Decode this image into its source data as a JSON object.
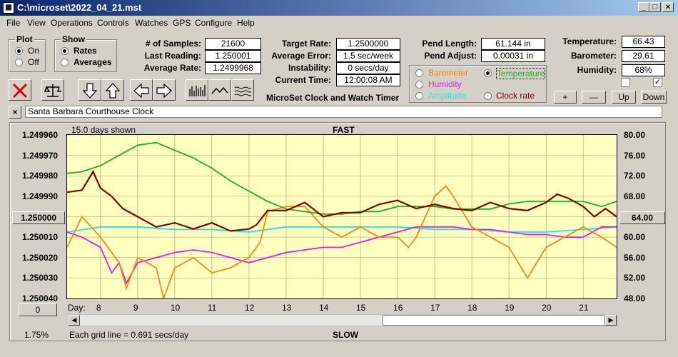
{
  "window": {
    "title": "C:\\microset\\2022_04_21.mst"
  },
  "menu": [
    "File",
    "View",
    "Operations",
    "Controls",
    "Watches",
    "GPS",
    "Configure",
    "Help"
  ],
  "plot_group": {
    "title": "Plot",
    "on": "On",
    "off": "Off",
    "selected": "On"
  },
  "show_group": {
    "title": "Show",
    "rates": "Rates",
    "averages": "Averages",
    "selected": "Rates"
  },
  "stats": {
    "samples_label": "# of Samples:",
    "samples": "21600",
    "last_label": "Last Reading:",
    "last": "1.250001",
    "avg_label": "Average Rate:",
    "avg": "1.2499968",
    "target_label": "Target Rate:",
    "target": "1.2500000",
    "avgerr_label": "Average Error:",
    "avgerr": "1.5 sec/week",
    "instab_label": "Instability:",
    "instab": "0 secs/day",
    "time_label": "Current Time:",
    "time": "12:00:08 AM",
    "pendlen_label": "Pend Length:",
    "pendlen": "61.144 in",
    "pendadj_label": "Pend Adjust:",
    "pendadj": "0.00031 in",
    "temp_label": "Temperature:",
    "temp": "66.43",
    "baro_label": "Barometer:",
    "baro": "29.61",
    "hum_label": "Humidity:",
    "hum": "68%"
  },
  "app_caption": "MicroSet Clock and Watch Timer",
  "sensor_select": {
    "barometer": "Barometer",
    "temperature": "Temperature",
    "humidity": "Humidity",
    "amplitude": "Amplitude",
    "clockrate": "Clock rate",
    "selected": "Temperature"
  },
  "scale_buttons": {
    "plus": "+",
    "minus": "—",
    "up": "Up",
    "down": "Down"
  },
  "clock_name": "Santa Barbara Courthouse Clock",
  "chart_header": {
    "days_shown": "15.0 days shown",
    "fast": "FAST",
    "slow": "SLOW",
    "grid_note": "Each grid line = 0.691 secs/day",
    "percent": "1.75%",
    "day_label": "Day:",
    "left_center_btn": "1.250000",
    "right_center_btn": "64.00",
    "bottom_btn": "0"
  },
  "colors": {
    "rate": "#800000",
    "temperature": "#20b020",
    "barometer": "#f08c14",
    "humidity": "#e020e0",
    "amplitude": "#20e0f0",
    "plot_bg": "#ffffc0"
  },
  "chart_data": {
    "type": "line",
    "x_label": "Day:",
    "x_ticks": [
      8,
      9,
      10,
      11,
      12,
      13,
      14,
      15,
      16,
      17,
      18,
      19,
      20,
      21
    ],
    "xlim": [
      7.1,
      21.9
    ],
    "y_left_ticks": [
      "1.249960",
      "1.249970",
      "1.249980",
      "1.249990",
      "1.250000",
      "1.250010",
      "1.250020",
      "1.250030",
      "1.250040"
    ],
    "y_left_lim": [
      1.24996,
      1.25004
    ],
    "y_right_ticks": [
      "80.00",
      "76.00",
      "72.00",
      "68.00",
      "64.00",
      "60.00",
      "56.00",
      "52.00",
      "48.00"
    ],
    "y_right_lim": [
      48,
      80
    ],
    "series": [
      {
        "name": "",
        "axis": "left",
        "color": "#800000",
        "x": [
          7.1,
          7.5,
          7.8,
          8.0,
          8.3,
          8.6,
          9.0,
          9.5,
          10,
          10.5,
          11,
          11.5,
          12,
          12.2,
          12.5,
          13,
          13.5,
          14,
          14.5,
          15,
          15.5,
          16,
          16.5,
          17,
          17.5,
          18,
          18.5,
          19,
          19.5,
          20,
          20.3,
          20.6,
          21,
          21.3,
          21.6,
          21.9
        ],
        "y": [
          1.249988,
          1.249987,
          1.249978,
          1.249986,
          1.24999,
          1.249996,
          1.25,
          1.250005,
          1.250003,
          1.250006,
          1.250003,
          1.250007,
          1.250006,
          1.250004,
          1.249997,
          1.249997,
          1.249993,
          1.25,
          1.249998,
          1.249998,
          1.249994,
          1.249992,
          1.249996,
          1.249994,
          1.249996,
          1.249997,
          1.249993,
          1.249996,
          1.249997,
          1.249993,
          1.249989,
          1.249991,
          1.249995,
          1.25,
          1.249996,
          1.25
        ]
      },
      {
        "name": "Temperature",
        "axis": "right",
        "color": "#20b020",
        "x": [
          7.1,
          7.5,
          8.0,
          8.5,
          9.0,
          9.5,
          10,
          10.5,
          11,
          11.5,
          12,
          12.5,
          13,
          13.5,
          14,
          14.5,
          15,
          15.5,
          16,
          16.5,
          17,
          17.5,
          18,
          18.5,
          19,
          19.5,
          20,
          20.5,
          21,
          21.5,
          21.9
        ],
        "y": [
          72.5,
          72.8,
          74,
          76,
          78,
          78.5,
          77,
          75.5,
          73.5,
          71,
          69,
          67,
          65.5,
          65,
          64.5,
          64.5,
          65,
          65,
          66,
          66,
          66,
          65.5,
          65.5,
          65.5,
          66.5,
          67,
          67,
          67,
          67,
          66,
          67
        ]
      },
      {
        "name": "Barometer",
        "axis": "right",
        "color": "#f08c14",
        "x": [
          7.1,
          7.5,
          8.0,
          8.5,
          8.7,
          9.0,
          9.5,
          9.7,
          10,
          10.5,
          11,
          11.5,
          12,
          12.3,
          12.5,
          13,
          13.5,
          14,
          14.5,
          15,
          15.5,
          16,
          16.3,
          16.5,
          17,
          17.3,
          17.5,
          18,
          18.5,
          19,
          19.5,
          20,
          20.5,
          21,
          21.5,
          21.9
        ],
        "y": [
          58,
          64,
          60,
          55,
          50,
          56,
          54,
          48,
          54,
          56,
          53,
          54,
          56,
          59,
          65,
          66,
          66,
          62,
          60,
          62,
          60,
          60,
          58,
          60,
          68,
          70,
          68,
          62,
          60,
          58,
          52,
          58,
          60,
          62,
          60,
          58
        ]
      },
      {
        "name": "Humidity",
        "axis": "right",
        "color": "#e020e0",
        "x": [
          7.1,
          7.5,
          8.0,
          8.3,
          8.5,
          8.7,
          9.0,
          9.5,
          10,
          10.5,
          11,
          11.5,
          12,
          12.5,
          13,
          13.5,
          14,
          14.5,
          15,
          15.5,
          16,
          16.5,
          17,
          17.5,
          18,
          18.5,
          19,
          19.5,
          20,
          20.5,
          21,
          21.5,
          21.9
        ],
        "y": [
          61,
          60,
          58,
          53,
          55,
          51,
          55,
          56,
          57,
          57.5,
          57,
          56,
          55,
          56,
          57,
          57.5,
          58,
          58,
          59,
          60,
          61,
          62,
          62,
          62,
          61.5,
          61.5,
          61,
          60.5,
          60.5,
          60,
          60,
          62,
          62
        ]
      },
      {
        "name": "Amplitude",
        "axis": "right",
        "color": "#20e0f0",
        "x": [
          7.1,
          8,
          9,
          10,
          11,
          12,
          13,
          14,
          15,
          16,
          17,
          18,
          19,
          20,
          21,
          21.9
        ],
        "y": [
          61,
          62,
          62,
          61.5,
          61.5,
          61,
          62,
          62,
          62,
          62,
          61.5,
          61.5,
          61,
          61,
          61.5,
          62
        ]
      }
    ]
  }
}
